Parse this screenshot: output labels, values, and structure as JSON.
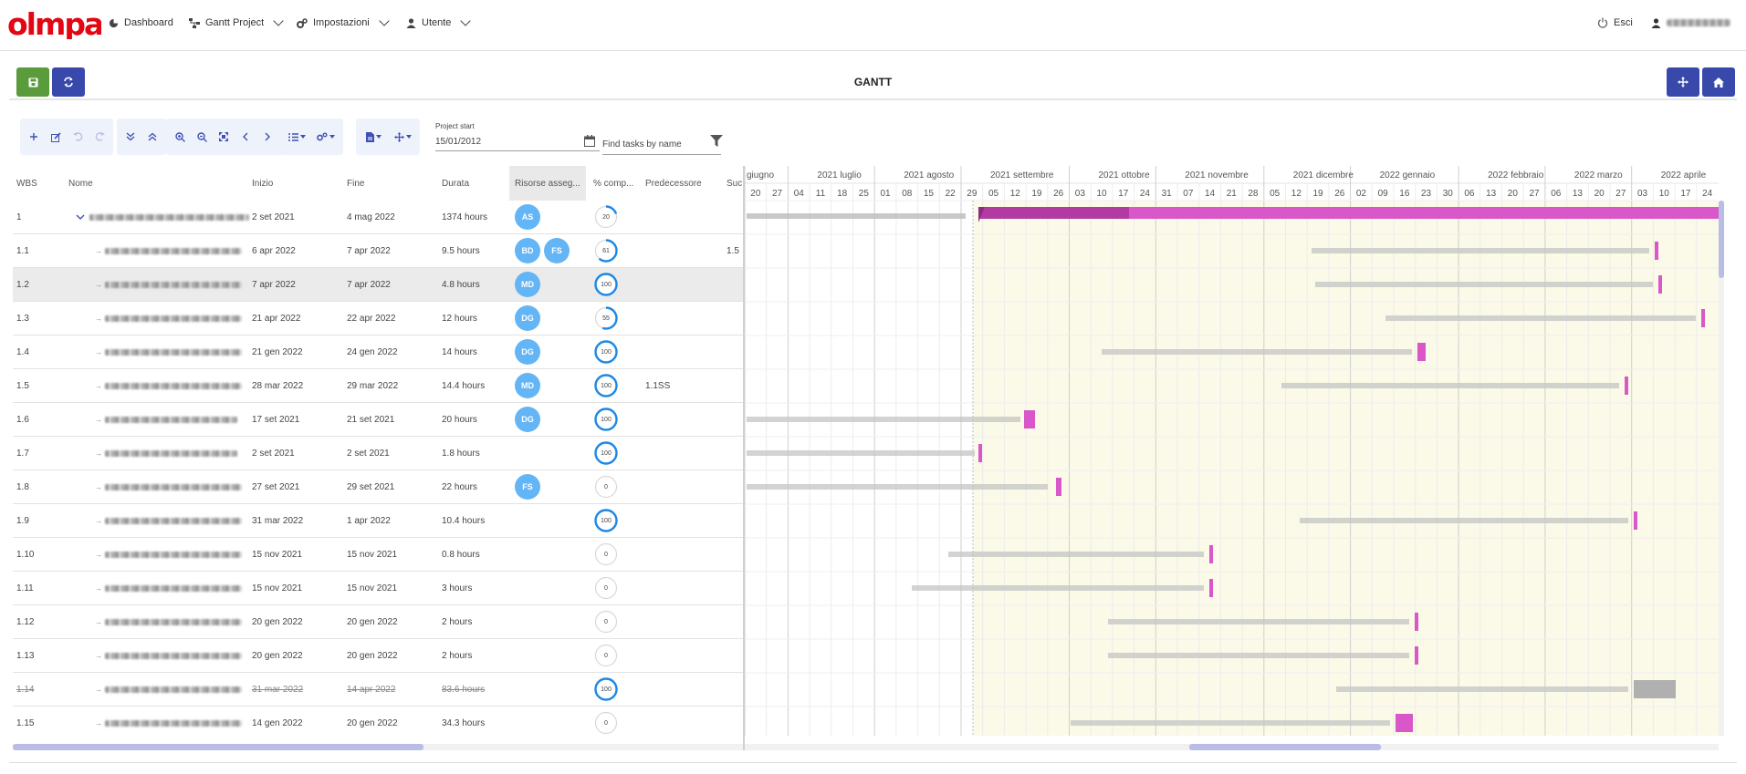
{
  "app": {
    "logo_text": "olmpa",
    "brand_color": "#e30613",
    "accent": "#3949ab",
    "save_color": "#5a9b3b"
  },
  "nav": {
    "dashboard": "Dashboard",
    "gantt_project": "Gantt Project",
    "impostazioni": "Impostazioni",
    "utente": "Utente",
    "esci": "Esci"
  },
  "page": {
    "title": "GANTT"
  },
  "toolbar": {
    "project_start_label": "Project start",
    "project_start_value": "15/01/2012",
    "find_placeholder": "Find tasks by name"
  },
  "grid": {
    "columns": [
      "WBS",
      "Nome",
      "Inizio",
      "Fine",
      "Durata",
      "Risorse asseg...",
      "% comp...",
      "Predecessore",
      "Suc"
    ],
    "rows": [
      {
        "wbs": "1",
        "start": "2 set 2021",
        "end": "4 mag 2022",
        "dur": "1374 hours",
        "res": [
          "AS"
        ],
        "pct": 20,
        "pred": "",
        "succ": "",
        "parent": true
      },
      {
        "wbs": "1.1",
        "start": "6 apr 2022",
        "end": "7 apr 2022",
        "dur": "9.5 hours",
        "res": [
          "BD",
          "FS"
        ],
        "pct": 61,
        "pred": "",
        "succ": "1.5"
      },
      {
        "wbs": "1.2",
        "start": "7 apr 2022",
        "end": "7 apr 2022",
        "dur": "4.8 hours",
        "res": [
          "MD"
        ],
        "pct": 100,
        "pred": "",
        "succ": "",
        "selected": true
      },
      {
        "wbs": "1.3",
        "start": "21 apr 2022",
        "end": "22 apr 2022",
        "dur": "12 hours",
        "res": [
          "DG"
        ],
        "pct": 55,
        "pred": "",
        "succ": ""
      },
      {
        "wbs": "1.4",
        "start": "21 gen 2022",
        "end": "24 gen 2022",
        "dur": "14 hours",
        "res": [
          "DG"
        ],
        "pct": 100,
        "pred": "",
        "succ": ""
      },
      {
        "wbs": "1.5",
        "start": "28 mar 2022",
        "end": "29 mar 2022",
        "dur": "14.4 hours",
        "res": [
          "MD"
        ],
        "pct": 100,
        "pred": "1.1SS",
        "succ": ""
      },
      {
        "wbs": "1.6",
        "start": "17 set 2021",
        "end": "21 set 2021",
        "dur": "20 hours",
        "res": [
          "DG"
        ],
        "pct": 100,
        "pred": "",
        "succ": ""
      },
      {
        "wbs": "1.7",
        "start": "2 set 2021",
        "end": "2 set 2021",
        "dur": "1.8 hours",
        "res": [],
        "pct": 100,
        "pred": "",
        "succ": ""
      },
      {
        "wbs": "1.8",
        "start": "27 set 2021",
        "end": "29 set 2021",
        "dur": "22 hours",
        "res": [
          "FS"
        ],
        "pct": 0,
        "pred": "",
        "succ": ""
      },
      {
        "wbs": "1.9",
        "start": "31 mar 2022",
        "end": "1 apr 2022",
        "dur": "10.4 hours",
        "res": [],
        "pct": 100,
        "pred": "",
        "succ": ""
      },
      {
        "wbs": "1.10",
        "start": "15 nov 2021",
        "end": "15 nov 2021",
        "dur": "0.8 hours",
        "res": [],
        "pct": 0,
        "pred": "",
        "succ": ""
      },
      {
        "wbs": "1.11",
        "start": "15 nov 2021",
        "end": "15 nov 2021",
        "dur": "3 hours",
        "res": [],
        "pct": 0,
        "pred": "",
        "succ": ""
      },
      {
        "wbs": "1.12",
        "start": "20 gen 2022",
        "end": "20 gen 2022",
        "dur": "2 hours",
        "res": [],
        "pct": 0,
        "pred": "",
        "succ": ""
      },
      {
        "wbs": "1.13",
        "start": "20 gen 2022",
        "end": "20 gen 2022",
        "dur": "2 hours",
        "res": [],
        "pct": 0,
        "pred": "",
        "succ": ""
      },
      {
        "wbs": "1.14",
        "start": "31 mar 2022",
        "end": "14 apr 2022",
        "dur": "83.6 hours",
        "res": [],
        "pct": 100,
        "pred": "",
        "succ": "",
        "strike": true
      },
      {
        "wbs": "1.15",
        "start": "14 gen 2022",
        "end": "20 gen 2022",
        "dur": "34.3 hours",
        "res": [],
        "pct": 0,
        "pred": "",
        "succ": ""
      }
    ]
  },
  "timeline": {
    "months": [
      "giugno",
      "2021 luglio",
      "2021 agosto",
      "2021 settembre",
      "2021 ottobre",
      "2021 novembre",
      "2021 dicembre",
      "2022 gennaio",
      "2022 febbraio",
      "2022 marzo",
      "2022 aprile"
    ],
    "weeks": [
      "20",
      "27",
      "04",
      "11",
      "18",
      "25",
      "01",
      "08",
      "15",
      "22",
      "29",
      "05",
      "12",
      "19",
      "26",
      "03",
      "10",
      "17",
      "24",
      "31",
      "07",
      "14",
      "21",
      "28",
      "05",
      "12",
      "19",
      "26",
      "02",
      "09",
      "16",
      "23",
      "30",
      "06",
      "13",
      "20",
      "27",
      "06",
      "13",
      "20",
      "27",
      "03",
      "10",
      "17",
      "24"
    ],
    "bar_color": "#d957c8",
    "bar_progress_color": "#b23aa3",
    "disabled_bar_color": "#b0b0b0",
    "weekend_shade": "#fbf9e8"
  }
}
